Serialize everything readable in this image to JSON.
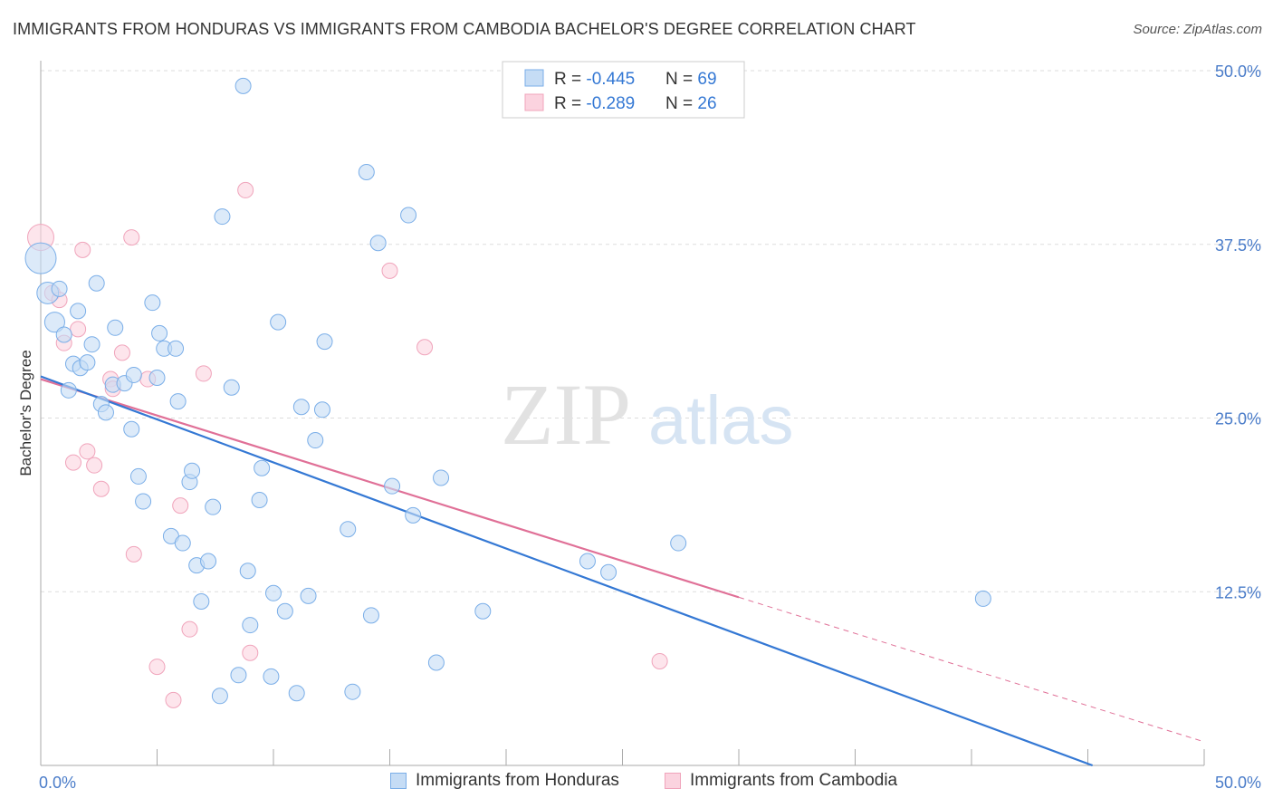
{
  "title": "IMMIGRANTS FROM HONDURAS VS IMMIGRANTS FROM CAMBODIA BACHELOR'S DEGREE CORRELATION CHART",
  "source": "Source: ZipAtlas.com",
  "watermark": {
    "zip": "ZIP",
    "atlas": "atlas"
  },
  "colors": {
    "honduras": "#7aaee8",
    "honduras_fill": "#c5dcf5",
    "honduras_line": "#3478d4",
    "cambodia": "#f0a4bb",
    "cambodia_fill": "#fbd3df",
    "cambodia_line": "#e07097",
    "tick_label": "#4a7cc9",
    "grid": "#dddddd"
  },
  "legend_top": {
    "rows": [
      {
        "r_label": "R = ",
        "r_value": "-0.445",
        "n_label": "N = ",
        "n_value": "69"
      },
      {
        "r_label": "R = ",
        "r_value": "-0.289",
        "n_label": "N = ",
        "n_value": "26"
      }
    ]
  },
  "chart_data": {
    "type": "scatter",
    "title": "IMMIGRANTS FROM HONDURAS VS IMMIGRANTS FROM CAMBODIA BACHELOR'S DEGREE CORRELATION CHART",
    "xlabel": "",
    "ylabel": "Bachelor's Degree",
    "xlim": [
      0,
      50
    ],
    "ylim": [
      0,
      50
    ],
    "x_tick_labels": [
      "0.0%",
      "50.0%"
    ],
    "y_tick_labels": [
      "12.5%",
      "25.0%",
      "37.5%",
      "50.0%"
    ],
    "y_ticks": [
      12.5,
      25.0,
      37.5,
      50.0
    ],
    "grid": true,
    "legend_position": "bottom",
    "series": [
      {
        "name": "Immigrants from Honduras",
        "color": "#7aaee8",
        "trend": {
          "x0": 0,
          "y0": 28.0,
          "x1": 45.2,
          "y1": 0.0,
          "dashed_to": null
        },
        "points": [
          [
            0.0,
            36.5,
            2
          ],
          [
            0.3,
            34.0,
            1.4
          ],
          [
            0.6,
            31.9,
            1.3
          ],
          [
            0.8,
            34.3,
            1
          ],
          [
            1.0,
            31.0,
            1
          ],
          [
            1.2,
            27.0,
            1
          ],
          [
            1.4,
            28.9,
            1
          ],
          [
            1.7,
            28.6,
            1
          ],
          [
            2.0,
            29.0,
            1
          ],
          [
            1.6,
            32.7,
            1
          ],
          [
            2.2,
            30.3,
            1
          ],
          [
            2.4,
            34.7,
            1
          ],
          [
            2.6,
            26.0,
            1
          ],
          [
            2.8,
            25.4,
            1
          ],
          [
            3.2,
            31.5,
            1
          ],
          [
            3.1,
            27.4,
            1
          ],
          [
            3.6,
            27.5,
            1
          ],
          [
            3.9,
            24.2,
            1
          ],
          [
            4.0,
            28.1,
            1
          ],
          [
            4.2,
            20.8,
            1
          ],
          [
            4.4,
            19.0,
            1
          ],
          [
            4.8,
            33.3,
            1
          ],
          [
            5.0,
            27.9,
            1
          ],
          [
            5.1,
            31.1,
            1
          ],
          [
            5.3,
            30.0,
            1
          ],
          [
            5.6,
            16.5,
            1
          ],
          [
            5.8,
            30.0,
            1
          ],
          [
            5.9,
            26.2,
            1
          ],
          [
            6.1,
            16.0,
            1
          ],
          [
            6.4,
            20.4,
            1
          ],
          [
            6.5,
            21.2,
            1
          ],
          [
            6.7,
            14.4,
            1
          ],
          [
            6.9,
            11.8,
            1
          ],
          [
            7.2,
            14.7,
            1
          ],
          [
            7.4,
            18.6,
            1
          ],
          [
            7.7,
            5.0,
            1
          ],
          [
            7.8,
            39.5,
            1
          ],
          [
            8.2,
            27.2,
            1
          ],
          [
            8.5,
            6.5,
            1
          ],
          [
            8.7,
            48.9,
            1
          ],
          [
            8.9,
            14.0,
            1
          ],
          [
            9.0,
            10.1,
            1
          ],
          [
            9.4,
            19.1,
            1
          ],
          [
            9.5,
            21.4,
            1
          ],
          [
            9.9,
            6.4,
            1
          ],
          [
            10.0,
            12.4,
            1
          ],
          [
            10.2,
            31.9,
            1
          ],
          [
            10.5,
            11.1,
            1
          ],
          [
            11.0,
            5.2,
            1
          ],
          [
            11.2,
            25.8,
            1
          ],
          [
            11.5,
            12.2,
            1
          ],
          [
            11.8,
            23.4,
            1
          ],
          [
            12.1,
            25.6,
            1
          ],
          [
            12.2,
            30.5,
            1
          ],
          [
            13.2,
            17.0,
            1
          ],
          [
            13.4,
            5.3,
            1
          ],
          [
            14.2,
            10.8,
            1
          ],
          [
            14.0,
            42.7,
            1
          ],
          [
            14.5,
            37.6,
            1
          ],
          [
            15.1,
            20.1,
            1
          ],
          [
            15.8,
            39.6,
            1
          ],
          [
            16.0,
            18.0,
            1
          ],
          [
            17.0,
            7.4,
            1
          ],
          [
            17.2,
            20.7,
            1
          ],
          [
            19.0,
            11.1,
            1
          ],
          [
            23.5,
            14.7,
            1
          ],
          [
            24.4,
            13.9,
            1
          ],
          [
            27.4,
            16.0,
            1
          ],
          [
            40.5,
            12.0,
            1
          ]
        ]
      },
      {
        "name": "Immigrants from Cambodia",
        "color": "#f0a4bb",
        "trend": {
          "x0": 0,
          "y0": 27.8,
          "x1": 30.0,
          "y1": 12.1,
          "dashed_to": [
            50.0,
            1.7
          ]
        },
        "points": [
          [
            0.0,
            38.0,
            1.7
          ],
          [
            0.5,
            34.0,
            1
          ],
          [
            0.8,
            33.5,
            1
          ],
          [
            1.0,
            30.4,
            1
          ],
          [
            1.4,
            21.8,
            1
          ],
          [
            1.6,
            31.4,
            1
          ],
          [
            1.8,
            37.1,
            1
          ],
          [
            2.0,
            22.6,
            1
          ],
          [
            2.3,
            21.6,
            1
          ],
          [
            2.6,
            19.9,
            1
          ],
          [
            3.0,
            27.8,
            1
          ],
          [
            3.1,
            27.1,
            1
          ],
          [
            3.5,
            29.7,
            1
          ],
          [
            3.9,
            38.0,
            1
          ],
          [
            4.0,
            15.2,
            1
          ],
          [
            4.6,
            27.8,
            1
          ],
          [
            5.0,
            7.1,
            1
          ],
          [
            5.7,
            4.7,
            1
          ],
          [
            6.0,
            18.7,
            1
          ],
          [
            6.4,
            9.8,
            1
          ],
          [
            7.0,
            28.2,
            1
          ],
          [
            8.8,
            41.4,
            1
          ],
          [
            9.0,
            8.1,
            1
          ],
          [
            15.0,
            35.6,
            1
          ],
          [
            16.5,
            30.1,
            1
          ],
          [
            26.6,
            7.5,
            1
          ]
        ]
      }
    ]
  }
}
